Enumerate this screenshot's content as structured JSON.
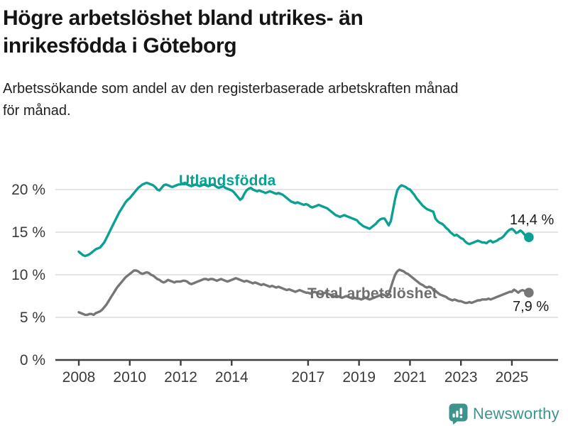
{
  "header": {
    "title": "Högre arbetslöshet bland utrikes- än\ninrikesfödda i Göteborg",
    "subtitle": "Arbetssökande som andel av den registerbaserade arbetskraften månad\nför månad."
  },
  "chart_data": {
    "type": "line",
    "frequency": "monthly",
    "x_start": "2008-01",
    "x_end": "2025-09",
    "unit": "%",
    "ylim": [
      0,
      22
    ],
    "grid": "horizontal",
    "y_ticks": [
      {
        "value": 0,
        "label": "0 %"
      },
      {
        "value": 5,
        "label": "5 %"
      },
      {
        "value": 10,
        "label": "10 %"
      },
      {
        "value": 15,
        "label": "15 %"
      },
      {
        "value": 20,
        "label": "20 %"
      }
    ],
    "x_ticks": [
      {
        "year": 2008,
        "label": "2008"
      },
      {
        "year": 2010,
        "label": "2010"
      },
      {
        "year": 2012,
        "label": "2012"
      },
      {
        "year": 2014,
        "label": "2014"
      },
      {
        "year": 2017,
        "label": "2017"
      },
      {
        "year": 2019,
        "label": "2019"
      },
      {
        "year": 2021,
        "label": "2021"
      },
      {
        "year": 2023,
        "label": "2023"
      },
      {
        "year": 2025,
        "label": "2025"
      }
    ],
    "series": [
      {
        "name": "Utlandsfödda",
        "color": "#0ba094",
        "end_label": "14,4 %",
        "end_value": 14.4,
        "values": [
          12.7,
          12.5,
          12.3,
          12.2,
          12.3,
          12.4,
          12.6,
          12.8,
          13.0,
          13.1,
          13.2,
          13.5,
          13.8,
          14.3,
          14.8,
          15.3,
          15.8,
          16.3,
          16.8,
          17.3,
          17.7,
          18.1,
          18.5,
          18.8,
          19.0,
          19.3,
          19.6,
          19.9,
          20.2,
          20.4,
          20.6,
          20.7,
          20.8,
          20.7,
          20.6,
          20.5,
          20.3,
          20.0,
          19.9,
          20.2,
          20.5,
          20.6,
          20.5,
          20.4,
          20.3,
          20.4,
          20.5,
          20.6,
          20.6,
          20.7,
          20.8,
          20.6,
          20.5,
          20.4,
          20.5,
          20.6,
          20.5,
          20.4,
          20.5,
          20.6,
          20.5,
          20.4,
          20.5,
          20.6,
          20.5,
          20.3,
          20.2,
          20.3,
          20.4,
          20.2,
          20.1,
          20.0,
          19.9,
          19.7,
          19.4,
          19.1,
          18.8,
          19.0,
          19.5,
          19.9,
          20.1,
          20.2,
          20.0,
          19.9,
          19.8,
          19.9,
          19.8,
          19.7,
          19.6,
          19.7,
          19.8,
          19.7,
          19.6,
          19.5,
          19.6,
          19.5,
          19.4,
          19.2,
          19.0,
          18.8,
          18.6,
          18.5,
          18.4,
          18.5,
          18.4,
          18.3,
          18.2,
          18.3,
          18.2,
          18.0,
          17.9,
          18.0,
          18.1,
          18.2,
          18.1,
          18.0,
          17.9,
          17.8,
          17.6,
          17.4,
          17.2,
          17.0,
          16.9,
          16.8,
          16.9,
          17.0,
          16.9,
          16.8,
          16.7,
          16.6,
          16.5,
          16.4,
          16.1,
          15.9,
          15.7,
          15.6,
          15.5,
          15.4,
          15.6,
          15.8,
          16.0,
          16.3,
          16.5,
          16.6,
          16.6,
          16.2,
          15.8,
          16.3,
          17.6,
          18.9,
          19.9,
          20.3,
          20.5,
          20.4,
          20.3,
          20.1,
          20.0,
          19.7,
          19.4,
          19.0,
          18.7,
          18.4,
          18.1,
          17.9,
          17.7,
          17.6,
          17.5,
          17.4,
          16.6,
          16.3,
          16.1,
          16.0,
          15.8,
          15.5,
          15.3,
          15.0,
          14.8,
          14.6,
          14.7,
          14.5,
          14.3,
          14.2,
          13.9,
          13.7,
          13.6,
          13.7,
          13.8,
          13.9,
          14.0,
          13.9,
          13.8,
          13.8,
          13.7,
          13.9,
          14.0,
          13.8,
          13.9,
          14.0,
          14.2,
          14.3,
          14.5,
          14.8,
          15.1,
          15.3,
          15.4,
          15.2,
          14.9,
          15.0,
          15.2,
          15.0,
          14.7,
          14.5,
          14.4
        ]
      },
      {
        "name": "Total arbetslöshet",
        "color": "#767676",
        "end_label": "7,9 %",
        "end_value": 7.9,
        "values": [
          5.6,
          5.5,
          5.4,
          5.3,
          5.3,
          5.4,
          5.4,
          5.3,
          5.5,
          5.6,
          5.7,
          5.9,
          6.2,
          6.5,
          6.9,
          7.3,
          7.7,
          8.1,
          8.5,
          8.8,
          9.1,
          9.4,
          9.7,
          9.9,
          10.1,
          10.3,
          10.5,
          10.5,
          10.4,
          10.2,
          10.1,
          10.2,
          10.3,
          10.2,
          10.0,
          9.9,
          9.7,
          9.5,
          9.4,
          9.2,
          9.1,
          9.2,
          9.4,
          9.3,
          9.2,
          9.1,
          9.2,
          9.2,
          9.2,
          9.3,
          9.3,
          9.2,
          9.0,
          8.9,
          9.0,
          9.1,
          9.2,
          9.3,
          9.4,
          9.5,
          9.5,
          9.4,
          9.5,
          9.5,
          9.4,
          9.3,
          9.4,
          9.5,
          9.4,
          9.3,
          9.2,
          9.3,
          9.4,
          9.5,
          9.6,
          9.5,
          9.4,
          9.3,
          9.2,
          9.3,
          9.2,
          9.1,
          9.0,
          9.1,
          9.0,
          8.9,
          8.8,
          8.9,
          8.8,
          8.7,
          8.6,
          8.7,
          8.6,
          8.5,
          8.6,
          8.5,
          8.4,
          8.3,
          8.2,
          8.3,
          8.2,
          8.1,
          8.0,
          8.1,
          8.2,
          8.1,
          8.0,
          7.9,
          7.9,
          7.8,
          7.9,
          8.0,
          7.9,
          7.8,
          7.7,
          7.8,
          7.9,
          7.8,
          7.7,
          7.6,
          7.5,
          7.4,
          7.5,
          7.4,
          7.3,
          7.4,
          7.5,
          7.4,
          7.3,
          7.2,
          7.3,
          7.2,
          7.2,
          7.1,
          7.2,
          7.3,
          7.2,
          7.1,
          7.2,
          7.3,
          7.4,
          7.5,
          7.6,
          7.7,
          7.6,
          7.5,
          7.7,
          8.5,
          9.3,
          10.0,
          10.4,
          10.6,
          10.5,
          10.4,
          10.2,
          10.1,
          9.9,
          9.7,
          9.5,
          9.3,
          9.1,
          8.9,
          8.8,
          8.6,
          8.5,
          8.6,
          8.5,
          8.3,
          8.1,
          7.9,
          7.7,
          7.6,
          7.5,
          7.4,
          7.2,
          7.1,
          7.0,
          7.1,
          7.0,
          6.9,
          6.9,
          6.8,
          6.7,
          6.7,
          6.8,
          6.7,
          6.8,
          6.9,
          7.0,
          7.0,
          7.1,
          7.1,
          7.1,
          7.2,
          7.1,
          7.2,
          7.3,
          7.4,
          7.5,
          7.6,
          7.7,
          7.8,
          7.9,
          8.0,
          8.0,
          8.25,
          8.1,
          7.9,
          8.1,
          8.2,
          8.1,
          8.0,
          7.9
        ]
      }
    ]
  },
  "branding": {
    "logo_text": "Newsworthy",
    "logo_color": "#3d948d",
    "logo_icon": "newsworthy-bubble-chart-icon"
  }
}
